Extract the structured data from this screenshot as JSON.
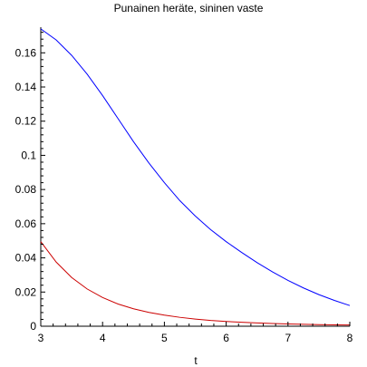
{
  "chart_data": {
    "type": "line",
    "title": "Punainen heräte, sininen vaste",
    "xlabel": "t",
    "ylabel": "",
    "xlim": [
      3,
      8
    ],
    "ylim": [
      0,
      0.175
    ],
    "x_ticks": [
      3,
      4,
      5,
      6,
      7,
      8
    ],
    "y_ticks": [
      0,
      0.02,
      0.04,
      0.06,
      0.08,
      0.1,
      0.12,
      0.14,
      0.16
    ],
    "x_tick_labels": [
      "3",
      "4",
      "5",
      "6",
      "7",
      "8"
    ],
    "y_tick_labels": [
      "0",
      "0.02",
      "0.04",
      "0.06",
      "0.08",
      "0.1",
      "0.12",
      "0.14",
      "0.16"
    ],
    "grid": false,
    "series": [
      {
        "color": "#0000ff",
        "x": [
          3.0,
          3.25,
          3.5,
          3.75,
          4.0,
          4.25,
          4.5,
          4.75,
          5.0,
          5.25,
          5.5,
          5.75,
          6.0,
          6.25,
          6.5,
          6.75,
          7.0,
          7.25,
          7.5,
          7.75,
          8.0
        ],
        "y": [
          0.174,
          0.1675,
          0.1585,
          0.1475,
          0.135,
          0.1215,
          0.108,
          0.0955,
          0.084,
          0.0735,
          0.0645,
          0.0565,
          0.0495,
          0.0432,
          0.0372,
          0.0318,
          0.0268,
          0.0224,
          0.0185,
          0.0151,
          0.0121
        ]
      },
      {
        "color": "#cc0000",
        "x": [
          3.0,
          3.25,
          3.5,
          3.75,
          4.0,
          4.25,
          4.5,
          4.75,
          5.0,
          5.25,
          5.5,
          5.75,
          6.0,
          6.25,
          6.5,
          6.75,
          7.0,
          7.25,
          7.5,
          7.75,
          8.0
        ],
        "y": [
          0.0495,
          0.0375,
          0.0285,
          0.0218,
          0.0168,
          0.013,
          0.0102,
          0.0081,
          0.0065,
          0.0052,
          0.0042,
          0.0034,
          0.0028,
          0.0023,
          0.0019,
          0.0016,
          0.0013,
          0.0011,
          0.0009,
          0.0008,
          0.0007
        ]
      }
    ]
  }
}
